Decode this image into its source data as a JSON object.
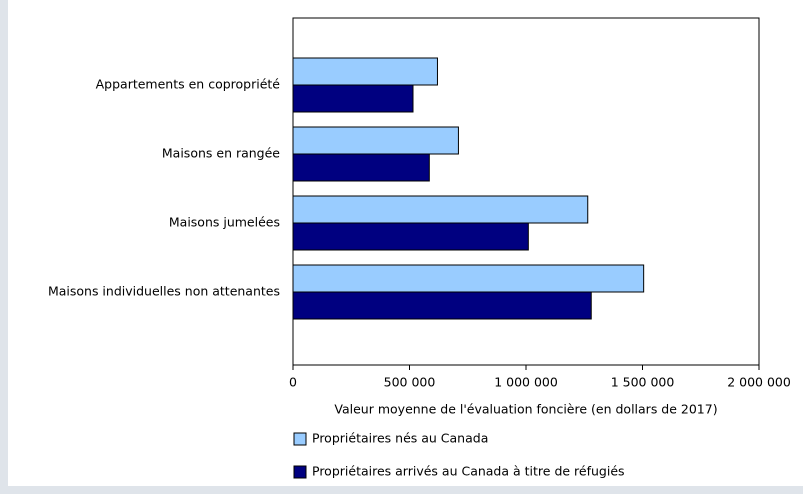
{
  "chart_data": {
    "type": "hbar",
    "categories": [
      "Appartements en copropriété",
      "Maisons en rangée",
      "Maisons jumelées",
      "Maisons individuelles non attenantes"
    ],
    "series": [
      {
        "name": "Propriétaires nés au Canada",
        "color": "#99ccff",
        "values": [
          620000,
          710000,
          1265000,
          1505000
        ]
      },
      {
        "name": "Propriétaires arrivés au Canada à titre de réfugiés",
        "color": "#000080",
        "values": [
          515000,
          585000,
          1010000,
          1280000
        ]
      }
    ],
    "xlabel": "Valeur moyenne de l'évaluation foncière (en dollars de 2017)",
    "xlim": [
      0,
      2000000
    ],
    "xticks": [
      0,
      {
        "value": 500000,
        "label": "500 000"
      },
      {
        "value": 1000000,
        "label": "1 000 000"
      },
      {
        "value": 1500000,
        "label": "1 500 000"
      },
      {
        "value": 2000000,
        "label": "2 000 000"
      }
    ],
    "legend": "bottom"
  }
}
